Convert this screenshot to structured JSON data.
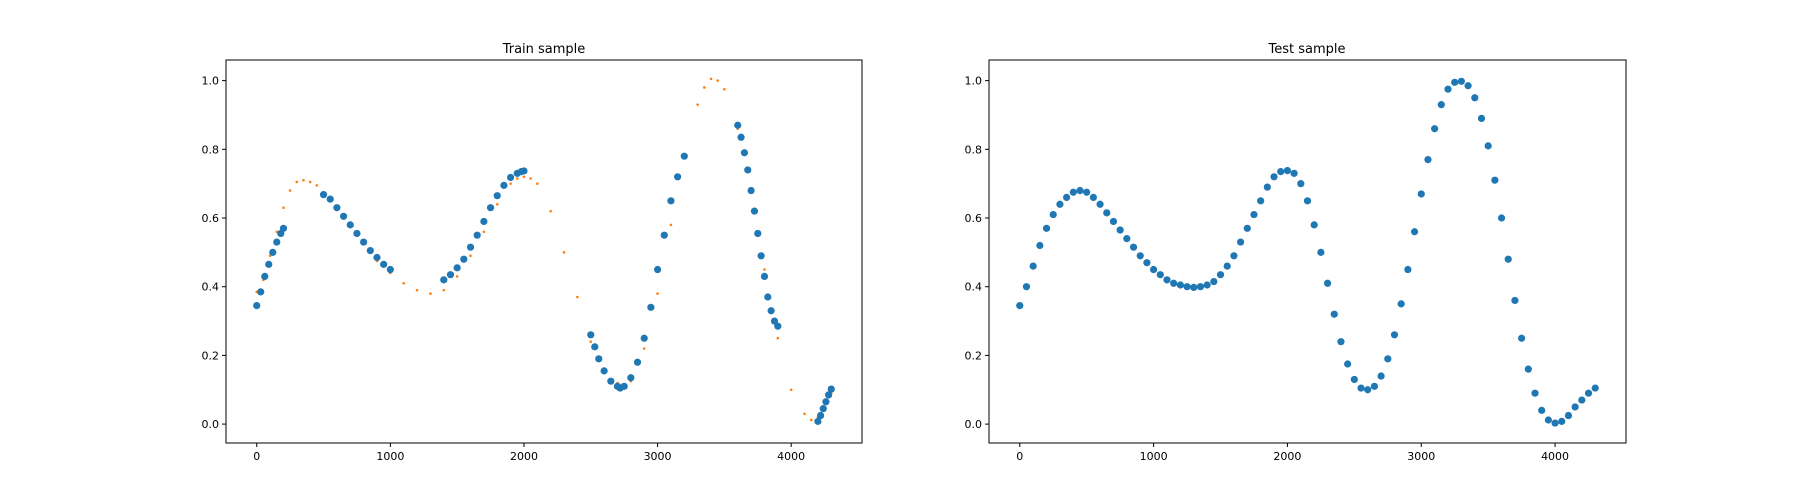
{
  "chart_data": [
    {
      "type": "scatter",
      "title": "Train sample",
      "xlim": [
        -230,
        4530
      ],
      "ylim": [
        -0.055,
        1.06
      ],
      "xticks": [
        0,
        1000,
        2000,
        3000,
        4000
      ],
      "yticks": [
        0.0,
        0.2,
        0.4,
        0.6,
        0.8,
        1.0
      ],
      "xtick_labels": [
        "0",
        "1000",
        "2000",
        "3000",
        "4000"
      ],
      "ytick_labels": [
        "0.0",
        "0.2",
        "0.4",
        "0.6",
        "0.8",
        "1.0"
      ],
      "grid": false,
      "series": [
        {
          "color": "#ff7f0e",
          "marker_size": "small",
          "x": [
            0,
            50,
            100,
            150,
            200,
            250,
            300,
            350,
            400,
            450,
            500,
            600,
            700,
            800,
            900,
            1000,
            1100,
            1200,
            1300,
            1400,
            1500,
            1600,
            1700,
            1800,
            1900,
            1950,
            2000,
            2050,
            2100,
            2200,
            2300,
            2400,
            2500,
            2600,
            2700,
            2750,
            2800,
            2900,
            3000,
            3100,
            3200,
            3300,
            3350,
            3400,
            3450,
            3500,
            3600,
            3700,
            3800,
            3900,
            4000,
            4100,
            4150,
            4200,
            4250,
            4300
          ],
          "y": [
            0.385,
            0.42,
            0.49,
            0.56,
            0.63,
            0.68,
            0.705,
            0.71,
            0.705,
            0.695,
            0.675,
            0.63,
            0.58,
            0.53,
            0.475,
            0.44,
            0.41,
            0.39,
            0.38,
            0.39,
            0.43,
            0.49,
            0.56,
            0.64,
            0.7,
            0.715,
            0.72,
            0.715,
            0.7,
            0.62,
            0.5,
            0.37,
            0.24,
            0.16,
            0.12,
            0.115,
            0.125,
            0.22,
            0.38,
            0.58,
            0.78,
            0.93,
            0.98,
            1.005,
            1.0,
            0.975,
            0.86,
            0.68,
            0.45,
            0.25,
            0.1,
            0.03,
            0.012,
            0.02,
            0.05,
            0.09
          ]
        },
        {
          "color": "#1f77b4",
          "marker_size": "large",
          "x": [
            0,
            30,
            60,
            90,
            120,
            150,
            180,
            200,
            500,
            550,
            600,
            650,
            700,
            750,
            800,
            850,
            900,
            950,
            1000,
            1400,
            1450,
            1500,
            1550,
            1600,
            1650,
            1700,
            1750,
            1800,
            1850,
            1900,
            1950,
            1980,
            2000,
            2500,
            2530,
            2560,
            2600,
            2650,
            2700,
            2720,
            2750,
            2800,
            2850,
            2900,
            2950,
            3000,
            3050,
            3100,
            3150,
            3200,
            3600,
            3625,
            3650,
            3675,
            3700,
            3725,
            3750,
            3775,
            3800,
            3825,
            3850,
            3875,
            3900,
            4200,
            4220,
            4240,
            4260,
            4280,
            4300
          ],
          "y": [
            0.345,
            0.385,
            0.43,
            0.465,
            0.5,
            0.53,
            0.555,
            0.57,
            0.668,
            0.655,
            0.63,
            0.605,
            0.58,
            0.555,
            0.53,
            0.505,
            0.485,
            0.465,
            0.45,
            0.42,
            0.435,
            0.455,
            0.48,
            0.515,
            0.55,
            0.59,
            0.63,
            0.665,
            0.695,
            0.718,
            0.73,
            0.735,
            0.737,
            0.26,
            0.225,
            0.19,
            0.155,
            0.125,
            0.11,
            0.105,
            0.11,
            0.135,
            0.18,
            0.25,
            0.34,
            0.45,
            0.55,
            0.65,
            0.72,
            0.78,
            0.87,
            0.835,
            0.79,
            0.74,
            0.68,
            0.62,
            0.555,
            0.49,
            0.43,
            0.37,
            0.33,
            0.3,
            0.285,
            0.008,
            0.025,
            0.045,
            0.065,
            0.085,
            0.102
          ]
        }
      ]
    },
    {
      "type": "scatter",
      "title": "Test sample",
      "xlim": [
        -230,
        4530
      ],
      "ylim": [
        -0.055,
        1.06
      ],
      "xticks": [
        0,
        1000,
        2000,
        3000,
        4000
      ],
      "yticks": [
        0.0,
        0.2,
        0.4,
        0.6,
        0.8,
        1.0
      ],
      "xtick_labels": [
        "0",
        "1000",
        "2000",
        "3000",
        "4000"
      ],
      "ytick_labels": [
        "0.0",
        "0.2",
        "0.4",
        "0.6",
        "0.8",
        "1.0"
      ],
      "grid": false,
      "series": [
        {
          "color": "#1f77b4",
          "marker_size": "large",
          "x": [
            0,
            50,
            100,
            150,
            200,
            250,
            300,
            350,
            400,
            450,
            500,
            550,
            600,
            650,
            700,
            750,
            800,
            850,
            900,
            950,
            1000,
            1050,
            1100,
            1150,
            1200,
            1250,
            1300,
            1350,
            1400,
            1450,
            1500,
            1550,
            1600,
            1650,
            1700,
            1750,
            1800,
            1850,
            1900,
            1950,
            2000,
            2050,
            2100,
            2150,
            2200,
            2250,
            2300,
            2350,
            2400,
            2450,
            2500,
            2550,
            2600,
            2650,
            2700,
            2750,
            2800,
            2850,
            2900,
            2950,
            3000,
            3050,
            3100,
            3150,
            3200,
            3250,
            3300,
            3350,
            3400,
            3450,
            3500,
            3550,
            3600,
            3650,
            3700,
            3750,
            3800,
            3850,
            3900,
            3950,
            4000,
            4050,
            4100,
            4150,
            4200,
            4250,
            4300
          ],
          "y": [
            0.345,
            0.4,
            0.46,
            0.52,
            0.57,
            0.61,
            0.64,
            0.66,
            0.675,
            0.68,
            0.675,
            0.66,
            0.64,
            0.615,
            0.59,
            0.565,
            0.54,
            0.515,
            0.49,
            0.47,
            0.45,
            0.435,
            0.42,
            0.41,
            0.405,
            0.4,
            0.398,
            0.4,
            0.405,
            0.415,
            0.435,
            0.46,
            0.49,
            0.53,
            0.57,
            0.61,
            0.65,
            0.69,
            0.72,
            0.735,
            0.738,
            0.73,
            0.7,
            0.65,
            0.58,
            0.5,
            0.41,
            0.32,
            0.24,
            0.175,
            0.13,
            0.105,
            0.1,
            0.11,
            0.14,
            0.19,
            0.26,
            0.35,
            0.45,
            0.56,
            0.67,
            0.77,
            0.86,
            0.93,
            0.975,
            0.995,
            0.998,
            0.985,
            0.95,
            0.89,
            0.81,
            0.71,
            0.6,
            0.48,
            0.36,
            0.25,
            0.16,
            0.09,
            0.04,
            0.012,
            0.003,
            0.008,
            0.025,
            0.05,
            0.07,
            0.09,
            0.105
          ]
        }
      ]
    }
  ]
}
